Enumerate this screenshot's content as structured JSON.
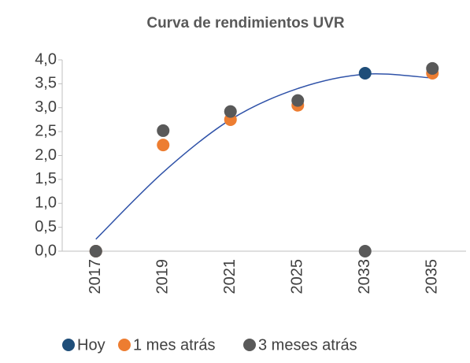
{
  "chart_data": {
    "type": "scatter",
    "title": "Curva de rendimientos UVR",
    "categories": [
      "2017",
      "2019",
      "2021",
      "2025",
      "2033",
      "2035"
    ],
    "series": [
      {
        "name": "Hoy",
        "color": "#1f4e79",
        "values": [
          0,
          null,
          null,
          null,
          3.72,
          null
        ]
      },
      {
        "name": "1 mes atrás",
        "color": "#ed7d31",
        "values": [
          0,
          2.22,
          2.75,
          3.05,
          null,
          3.72
        ]
      },
      {
        "name": "3 meses atrás",
        "color": "#595959",
        "values": [
          0,
          2.52,
          2.92,
          3.15,
          0,
          3.82
        ]
      }
    ],
    "trendline": {
      "color": "#2f52a8",
      "values": [
        0.25,
        1.65,
        2.75,
        3.4,
        3.7,
        3.62
      ]
    },
    "ylim": [
      0,
      4
    ],
    "yticks": [
      {
        "value": 0,
        "label": "0,0"
      },
      {
        "value": 0.5,
        "label": "0,5"
      },
      {
        "value": 1,
        "label": "1,0"
      },
      {
        "value": 1.5,
        "label": "1,5"
      },
      {
        "value": 2,
        "label": "2,0"
      },
      {
        "value": 2.5,
        "label": "2,5"
      },
      {
        "value": 3,
        "label": "3,0"
      },
      {
        "value": 3.5,
        "label": "3,5"
      },
      {
        "value": 4,
        "label": "4,0"
      }
    ],
    "legend": "bottom"
  }
}
